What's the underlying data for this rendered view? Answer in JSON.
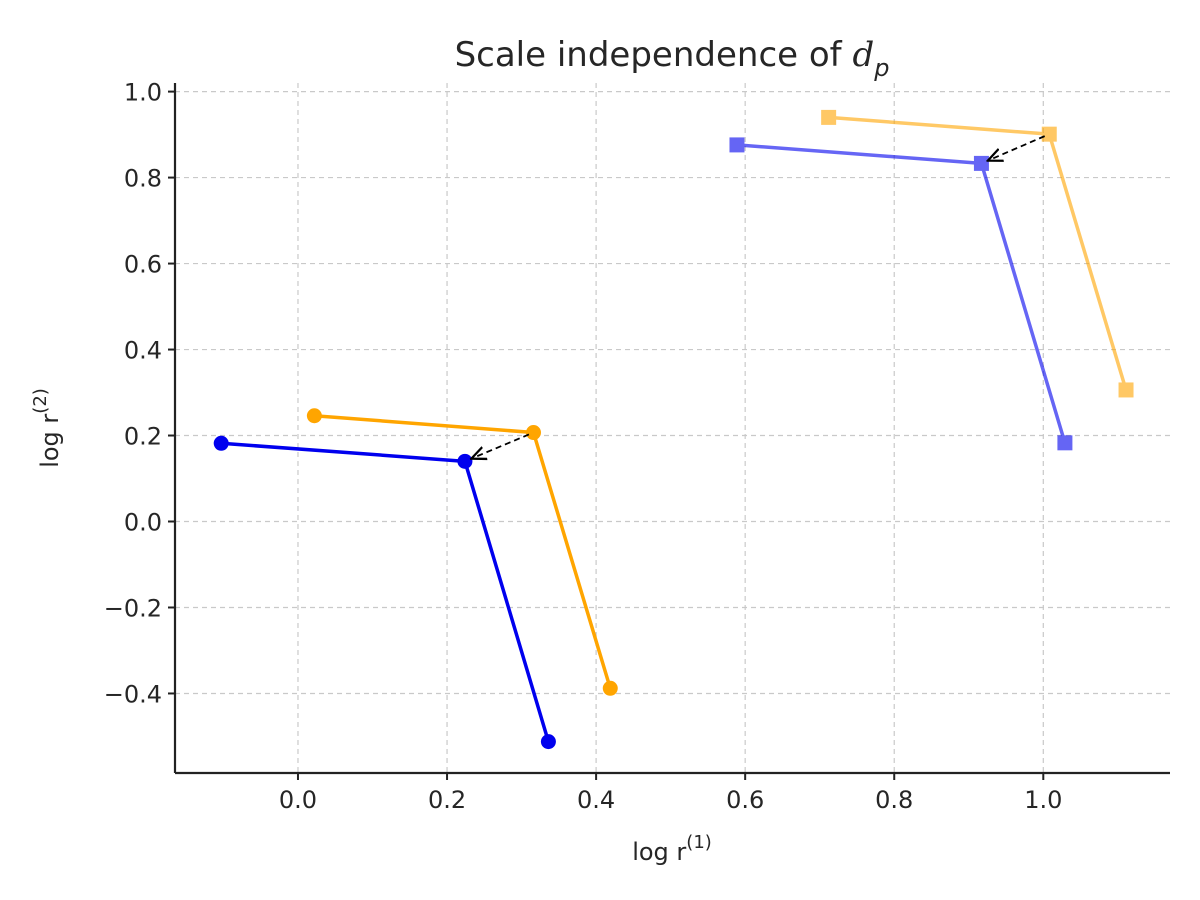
{
  "chart_data": {
    "type": "line",
    "title": "Scale independence of d",
    "title_subscript": "p",
    "xlabel": "log r",
    "xlabel_superscript": "(1)",
    "ylabel": "log r",
    "ylabel_superscript": "(2)",
    "xlim": [
      -0.165,
      1.17
    ],
    "ylim": [
      -0.585,
      1.02
    ],
    "x_ticks": [
      0.0,
      0.2,
      0.4,
      0.6,
      0.8,
      1.0
    ],
    "x_tick_labels": [
      "0.0",
      "0.2",
      "0.4",
      "0.6",
      "0.8",
      "1.0"
    ],
    "y_ticks": [
      -0.4,
      -0.2,
      0.0,
      0.2,
      0.4,
      0.6,
      0.8,
      1.0
    ],
    "y_tick_labels": [
      "−0.4",
      "−0.2",
      "0.0",
      "0.2",
      "0.4",
      "0.6",
      "0.8",
      "1.0"
    ],
    "grid": true,
    "series": [
      {
        "name": "orange-circles",
        "marker": "circle",
        "color": "#FFA500",
        "opacity": 1.0,
        "x": [
          0.022,
          0.316,
          0.419
        ],
        "y": [
          0.246,
          0.207,
          -0.388
        ]
      },
      {
        "name": "blue-circles",
        "marker": "circle",
        "color": "#0000EE",
        "opacity": 1.0,
        "x": [
          -0.103,
          0.224,
          0.336
        ],
        "y": [
          0.182,
          0.14,
          -0.512
        ]
      },
      {
        "name": "orange-squares",
        "marker": "square",
        "color": "#FFA500",
        "opacity": 0.6,
        "x": [
          0.712,
          1.008,
          1.111
        ],
        "y": [
          0.94,
          0.901,
          0.306
        ]
      },
      {
        "name": "blue-squares",
        "marker": "square",
        "color": "#0000EE",
        "opacity": 0.6,
        "x": [
          0.589,
          0.917,
          1.029
        ],
        "y": [
          0.876,
          0.833,
          0.183
        ]
      }
    ],
    "arrows": [
      {
        "from": [
          0.316,
          0.207
        ],
        "to": [
          0.224,
          0.14
        ],
        "style": "dashed",
        "color": "#000000"
      },
      {
        "from": [
          1.008,
          0.901
        ],
        "to": [
          0.917,
          0.833
        ],
        "style": "dashed",
        "color": "#000000"
      }
    ]
  }
}
